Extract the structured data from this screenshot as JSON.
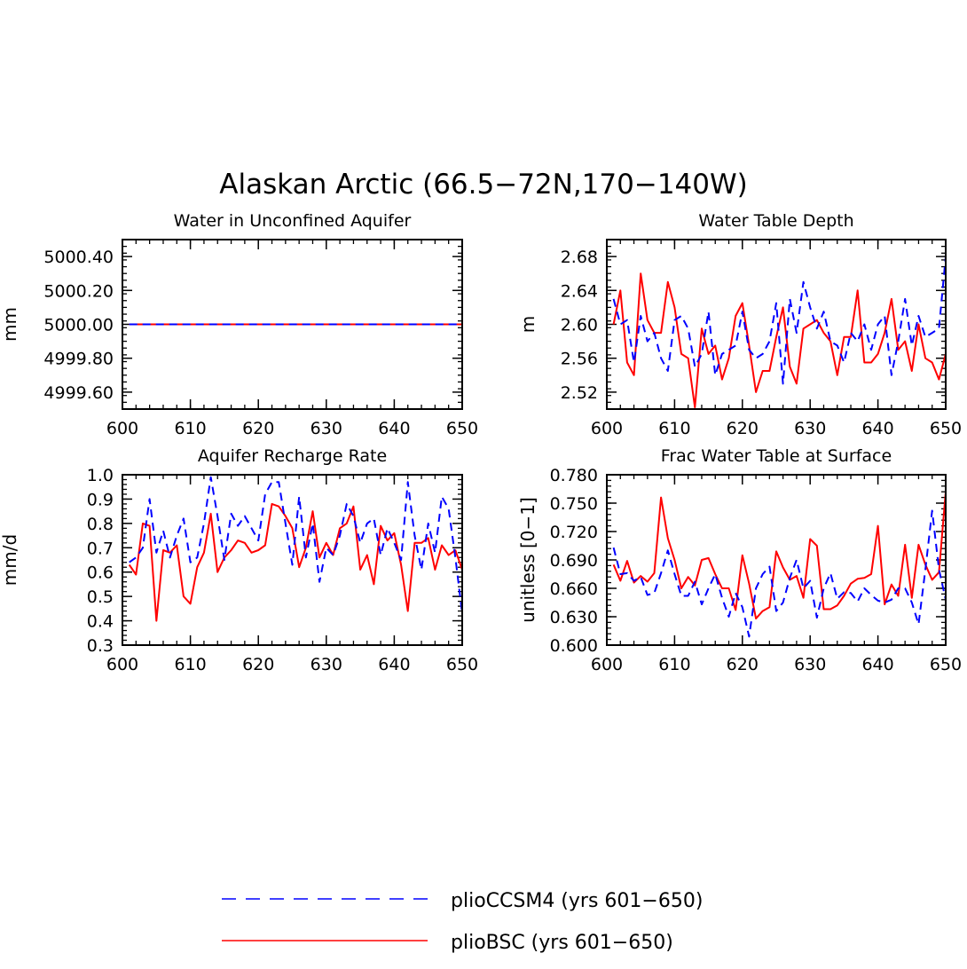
{
  "figure": {
    "title": "Alaskan Arctic (66.5−72N,170−140W)",
    "legend": [
      {
        "name": "plioCCSM4 (yrs 601−650)",
        "color": "#0000ff",
        "style": "dashed"
      },
      {
        "name": "plioBSC (yrs 601−650)",
        "color": "#ff0000",
        "style": "solid"
      }
    ]
  },
  "chart_data": [
    {
      "type": "line",
      "title": "Water in Unconfined Aquifer",
      "xlabel": "",
      "ylabel": "mm",
      "xlim": [
        600,
        650
      ],
      "ylim": [
        4999.5,
        5000.5
      ],
      "xticks": [
        "600",
        "610",
        "620",
        "630",
        "640",
        "650"
      ],
      "xtick_values": [
        600,
        610,
        620,
        630,
        640,
        650
      ],
      "yticks": [
        "4999.60",
        "4999.80",
        "5000.00",
        "5000.20",
        "5000.40"
      ],
      "ytick_values": [
        4999.6,
        4999.8,
        5000.0,
        5000.2,
        5000.4
      ],
      "x_start": 601,
      "series": [
        {
          "name": "plioCCSM4 (yrs 601−650)",
          "color": "#0000ff",
          "dash": true,
          "values": [
            5000,
            5000,
            5000,
            5000,
            5000,
            5000,
            5000,
            5000,
            5000,
            5000,
            5000,
            5000,
            5000,
            5000,
            5000,
            5000,
            5000,
            5000,
            5000,
            5000,
            5000,
            5000,
            5000,
            5000,
            5000,
            5000,
            5000,
            5000,
            5000,
            5000,
            5000,
            5000,
            5000,
            5000,
            5000,
            5000,
            5000,
            5000,
            5000,
            5000,
            5000,
            5000,
            5000,
            5000,
            5000,
            5000,
            5000,
            5000,
            5000,
            5000
          ]
        },
        {
          "name": "plioBSC (yrs 601−650)",
          "color": "#ff0000",
          "dash": false,
          "values": [
            5000,
            5000,
            5000,
            5000,
            5000,
            5000,
            5000,
            5000,
            5000,
            5000,
            5000,
            5000,
            5000,
            5000,
            5000,
            5000,
            5000,
            5000,
            5000,
            5000,
            5000,
            5000,
            5000,
            5000,
            5000,
            5000,
            5000,
            5000,
            5000,
            5000,
            5000,
            5000,
            5000,
            5000,
            5000,
            5000,
            5000,
            5000,
            5000,
            5000,
            5000,
            5000,
            5000,
            5000,
            5000,
            5000,
            5000,
            5000,
            5000,
            5000
          ]
        }
      ]
    },
    {
      "type": "line",
      "title": "Water Table Depth",
      "xlabel": "",
      "ylabel": "m",
      "xlim": [
        600,
        650
      ],
      "ylim": [
        2.5,
        2.7
      ],
      "xticks": [
        "600",
        "610",
        "620",
        "630",
        "640",
        "650"
      ],
      "xtick_values": [
        600,
        610,
        620,
        630,
        640,
        650
      ],
      "yticks": [
        "2.52",
        "2.56",
        "2.60",
        "2.64",
        "2.68"
      ],
      "ytick_values": [
        2.52,
        2.56,
        2.6,
        2.64,
        2.68
      ],
      "x_start": 601,
      "series": [
        {
          "name": "plioCCSM4 (yrs 601−650)",
          "color": "#0000ff",
          "dash": true,
          "values": [
            2.63,
            2.6,
            2.605,
            2.555,
            2.61,
            2.58,
            2.59,
            2.56,
            2.545,
            2.605,
            2.61,
            2.595,
            2.55,
            2.565,
            2.615,
            2.54,
            2.565,
            2.57,
            2.575,
            2.615,
            2.57,
            2.56,
            2.565,
            2.58,
            2.625,
            2.53,
            2.63,
            2.59,
            2.65,
            2.62,
            2.595,
            2.615,
            2.58,
            2.575,
            2.555,
            2.59,
            2.58,
            2.6,
            2.57,
            2.6,
            2.61,
            2.54,
            2.58,
            2.63,
            2.575,
            2.61,
            2.585,
            2.59,
            2.595,
            2.68
          ]
        },
        {
          "name": "plioBSC (yrs 601−650)",
          "color": "#ff0000",
          "dash": false,
          "values": [
            2.6,
            2.64,
            2.555,
            2.54,
            2.66,
            2.605,
            2.59,
            2.59,
            2.65,
            2.62,
            2.565,
            2.56,
            2.502,
            2.595,
            2.565,
            2.575,
            2.535,
            2.56,
            2.61,
            2.625,
            2.575,
            2.52,
            2.545,
            2.545,
            2.585,
            2.62,
            2.55,
            2.53,
            2.595,
            2.6,
            2.605,
            2.59,
            2.58,
            2.54,
            2.585,
            2.585,
            2.64,
            2.555,
            2.555,
            2.565,
            2.59,
            2.63,
            2.57,
            2.58,
            2.545,
            2.6,
            2.56,
            2.555,
            2.535,
            2.565
          ]
        }
      ]
    },
    {
      "type": "line",
      "title": "Aquifer Recharge Rate",
      "xlabel": "",
      "ylabel": "mm/d",
      "xlim": [
        600,
        650
      ],
      "ylim": [
        0.3,
        1.0
      ],
      "xticks": [
        "600",
        "610",
        "620",
        "630",
        "640",
        "650"
      ],
      "xtick_values": [
        600,
        610,
        620,
        630,
        640,
        650
      ],
      "yticks": [
        "0.3",
        "0.4",
        "0.5",
        "0.6",
        "0.7",
        "0.8",
        "0.9",
        "1.0"
      ],
      "ytick_values": [
        0.3,
        0.4,
        0.5,
        0.6,
        0.7,
        0.8,
        0.9,
        1.0
      ],
      "x_start": 601,
      "series": [
        {
          "name": "plioCCSM4 (yrs 601−650)",
          "color": "#0000ff",
          "dash": true,
          "values": [
            0.64,
            0.66,
            0.7,
            0.9,
            0.68,
            0.77,
            0.66,
            0.75,
            0.82,
            0.64,
            0.66,
            0.8,
            0.99,
            0.83,
            0.65,
            0.84,
            0.79,
            0.83,
            0.78,
            0.73,
            0.92,
            0.97,
            0.97,
            0.8,
            0.63,
            0.91,
            0.66,
            0.8,
            0.56,
            0.7,
            0.67,
            0.75,
            0.88,
            0.83,
            0.72,
            0.8,
            0.82,
            0.67,
            0.78,
            0.72,
            0.65,
            0.97,
            0.75,
            0.61,
            0.8,
            0.68,
            0.91,
            0.86,
            0.66,
            0.43
          ]
        },
        {
          "name": "plioBSC (yrs 601−650)",
          "color": "#ff0000",
          "dash": false,
          "values": [
            0.63,
            0.59,
            0.8,
            0.79,
            0.4,
            0.69,
            0.68,
            0.71,
            0.5,
            0.47,
            0.62,
            0.68,
            0.84,
            0.6,
            0.66,
            0.69,
            0.73,
            0.72,
            0.68,
            0.69,
            0.71,
            0.88,
            0.87,
            0.83,
            0.78,
            0.62,
            0.7,
            0.85,
            0.66,
            0.72,
            0.67,
            0.78,
            0.8,
            0.87,
            0.61,
            0.67,
            0.55,
            0.79,
            0.73,
            0.76,
            0.63,
            0.44,
            0.72,
            0.72,
            0.74,
            0.61,
            0.71,
            0.67,
            0.69,
            0.61
          ]
        }
      ]
    },
    {
      "type": "line",
      "title": "Frac Water Table at Surface",
      "xlabel": "",
      "ylabel": "unitless [0−1]",
      "xlim": [
        600,
        650
      ],
      "ylim": [
        0.6,
        0.78
      ],
      "xticks": [
        "600",
        "610",
        "620",
        "630",
        "640",
        "650"
      ],
      "xtick_values": [
        600,
        610,
        620,
        630,
        640,
        650
      ],
      "yticks": [
        "0.600",
        "0.630",
        "0.660",
        "0.690",
        "0.720",
        "0.750",
        "0.780"
      ],
      "ytick_values": [
        0.6,
        0.63,
        0.66,
        0.69,
        0.72,
        0.75,
        0.78
      ],
      "x_start": 601,
      "series": [
        {
          "name": "plioCCSM4 (yrs 601−650)",
          "color": "#0000ff",
          "dash": true,
          "values": [
            0.703,
            0.675,
            0.676,
            0.668,
            0.672,
            0.653,
            0.655,
            0.676,
            0.7,
            0.675,
            0.652,
            0.652,
            0.667,
            0.643,
            0.66,
            0.675,
            0.65,
            0.63,
            0.655,
            0.64,
            0.609,
            0.66,
            0.675,
            0.683,
            0.636,
            0.645,
            0.671,
            0.69,
            0.66,
            0.668,
            0.629,
            0.66,
            0.676,
            0.649,
            0.656,
            0.655,
            0.646,
            0.66,
            0.653,
            0.647,
            0.645,
            0.648,
            0.66,
            0.66,
            0.645,
            0.622,
            0.68,
            0.742,
            0.68,
            0.648
          ]
        },
        {
          "name": "plioBSC (yrs 601−650)",
          "color": "#ff0000",
          "dash": false,
          "values": [
            0.685,
            0.668,
            0.689,
            0.666,
            0.673,
            0.667,
            0.676,
            0.756,
            0.713,
            0.69,
            0.66,
            0.672,
            0.663,
            0.69,
            0.692,
            0.675,
            0.66,
            0.66,
            0.637,
            0.695,
            0.665,
            0.628,
            0.636,
            0.64,
            0.699,
            0.682,
            0.669,
            0.673,
            0.65,
            0.712,
            0.705,
            0.638,
            0.638,
            0.642,
            0.652,
            0.665,
            0.67,
            0.671,
            0.675,
            0.726,
            0.643,
            0.664,
            0.652,
            0.706,
            0.65,
            0.706,
            0.685,
            0.669,
            0.677,
            0.762
          ]
        }
      ]
    }
  ]
}
